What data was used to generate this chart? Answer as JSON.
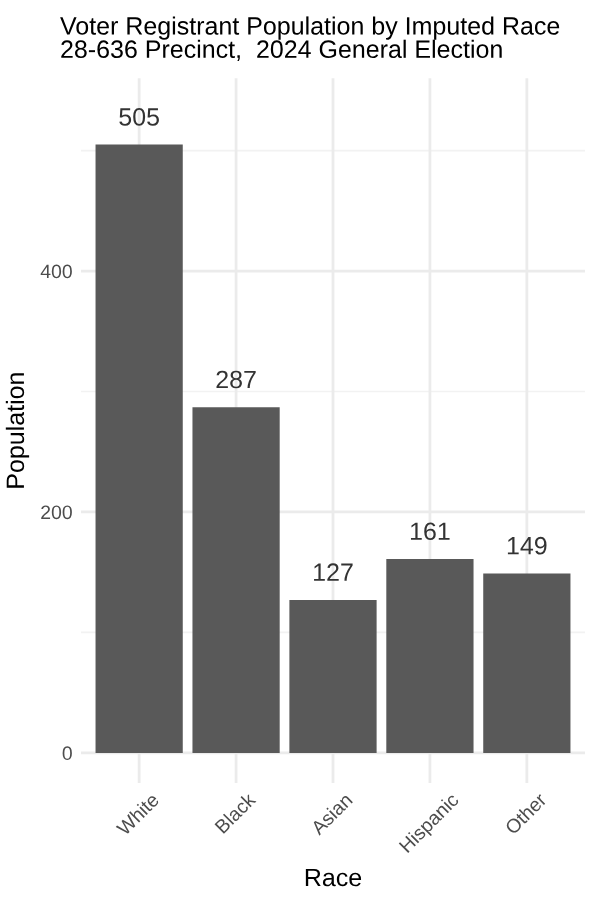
{
  "chart_data": {
    "type": "bar",
    "title": "Voter Registrant Population by Imputed Race\n28-636 Precinct,  2024 General Election",
    "xlabel": "Race",
    "ylabel": "Population",
    "categories": [
      "White",
      "Black",
      "Asian",
      "Hispanic",
      "Other"
    ],
    "values": [
      505,
      287,
      127,
      161,
      149
    ],
    "color": "#595959",
    "data_labels": true,
    "ylim": [
      -25,
      560
    ],
    "yticks": [
      0,
      200,
      400
    ],
    "grid": true
  }
}
